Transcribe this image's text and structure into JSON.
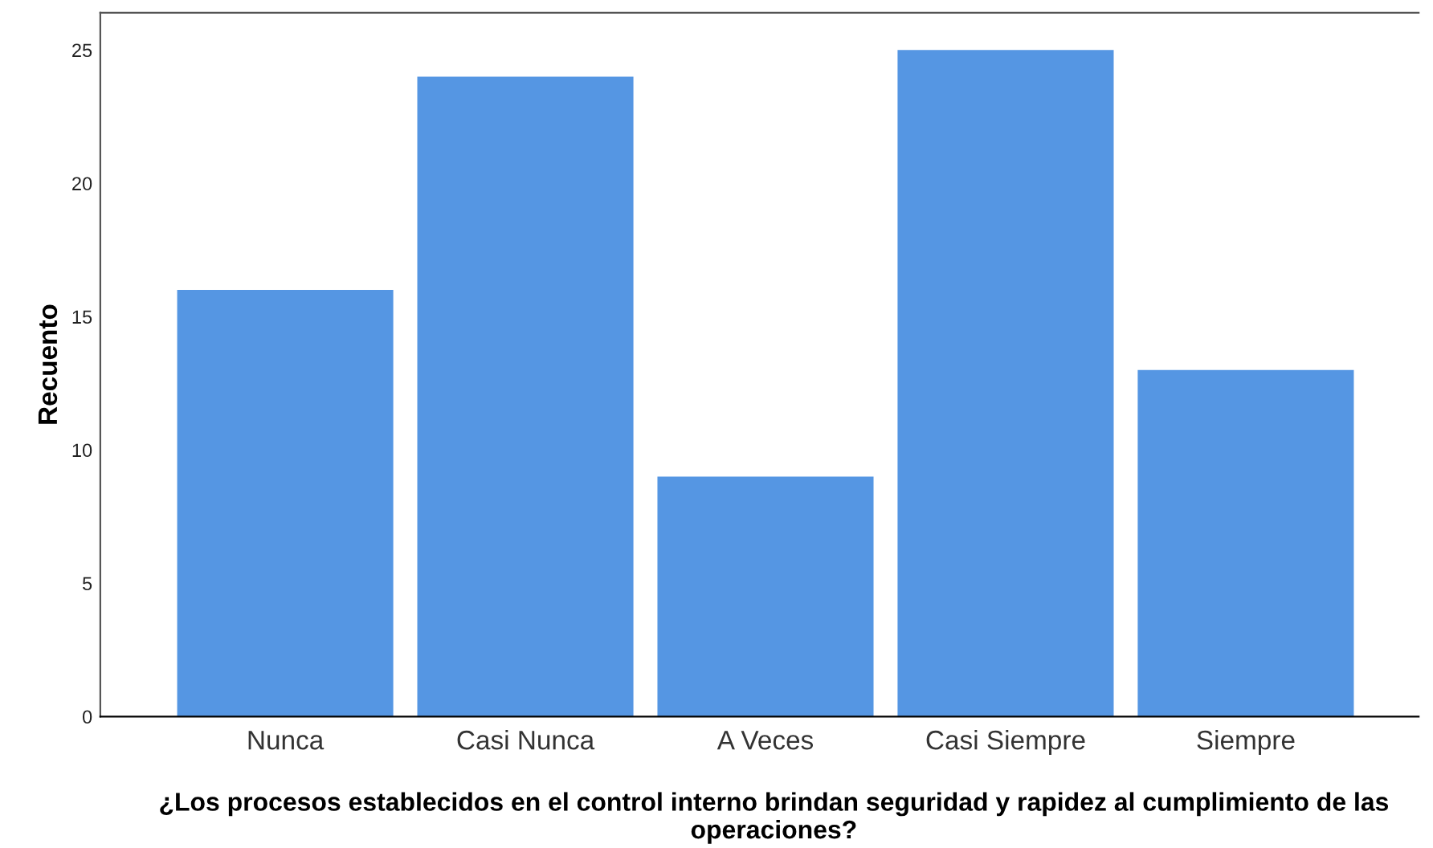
{
  "chart_data": {
    "type": "bar",
    "xlabel": "¿Los procesos establecidos en el control interno brindan seguridad y rapidez al cumplimiento de las operaciones?",
    "ylabel": "Recuento",
    "categories": [
      "Nunca",
      "Casi Nunca",
      "A Veces",
      "Casi Siempre",
      "Siempre"
    ],
    "values": [
      16,
      24,
      9,
      25,
      13
    ],
    "color": "#5596e3",
    "ylim": [
      0,
      26.4
    ],
    "yticks": [
      0,
      5,
      10,
      15,
      20,
      25
    ],
    "grid": false,
    "legend": false
  }
}
